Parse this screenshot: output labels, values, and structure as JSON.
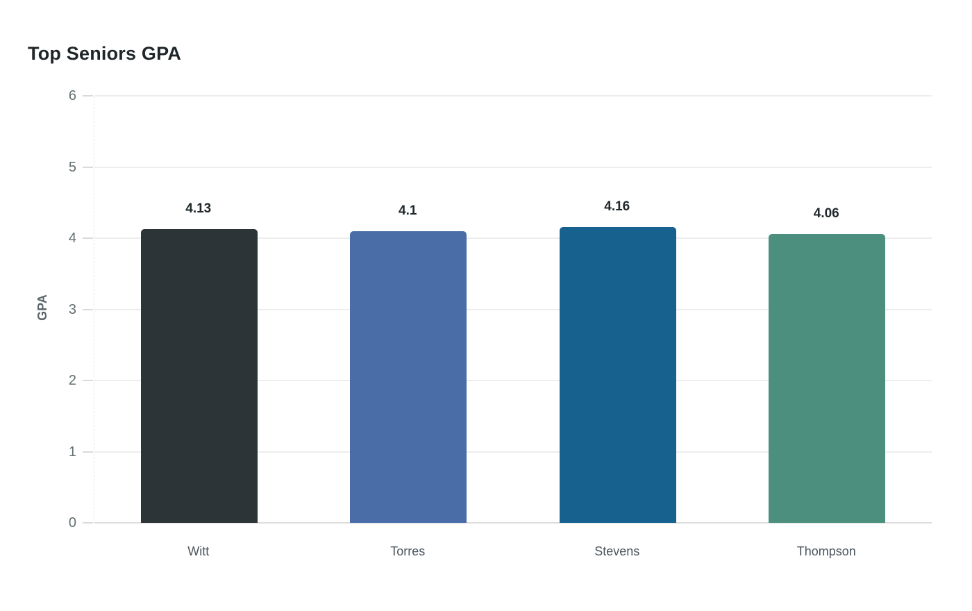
{
  "page": {
    "background_color": "#ffffff"
  },
  "chart_data": {
    "type": "bar",
    "title": "Top Seniors GPA",
    "xlabel": "",
    "ylabel": "GPA",
    "categories": [
      "Witt",
      "Torres",
      "Stevens",
      "Thompson"
    ],
    "values": [
      4.13,
      4.1,
      4.16,
      4.06
    ],
    "value_labels": [
      "4.13",
      "4.1",
      "4.16",
      "4.06"
    ],
    "bar_colors": [
      "#2c3437",
      "#4a6da7",
      "#17618f",
      "#4d8f7e"
    ],
    "ylim": [
      0,
      6
    ],
    "ytick_labels": [
      "0",
      "1",
      "2",
      "3",
      "4",
      "5",
      "6"
    ],
    "grid": "horizontal-gridlines-on",
    "legend": "none",
    "title_color": "#1f2629",
    "tick_label_color": "#646d70",
    "category_label_color": "#4a545c",
    "value_label_color": "#20282b",
    "gridline_color": "#ededed",
    "axis_line_color": "#dcdcdc"
  }
}
